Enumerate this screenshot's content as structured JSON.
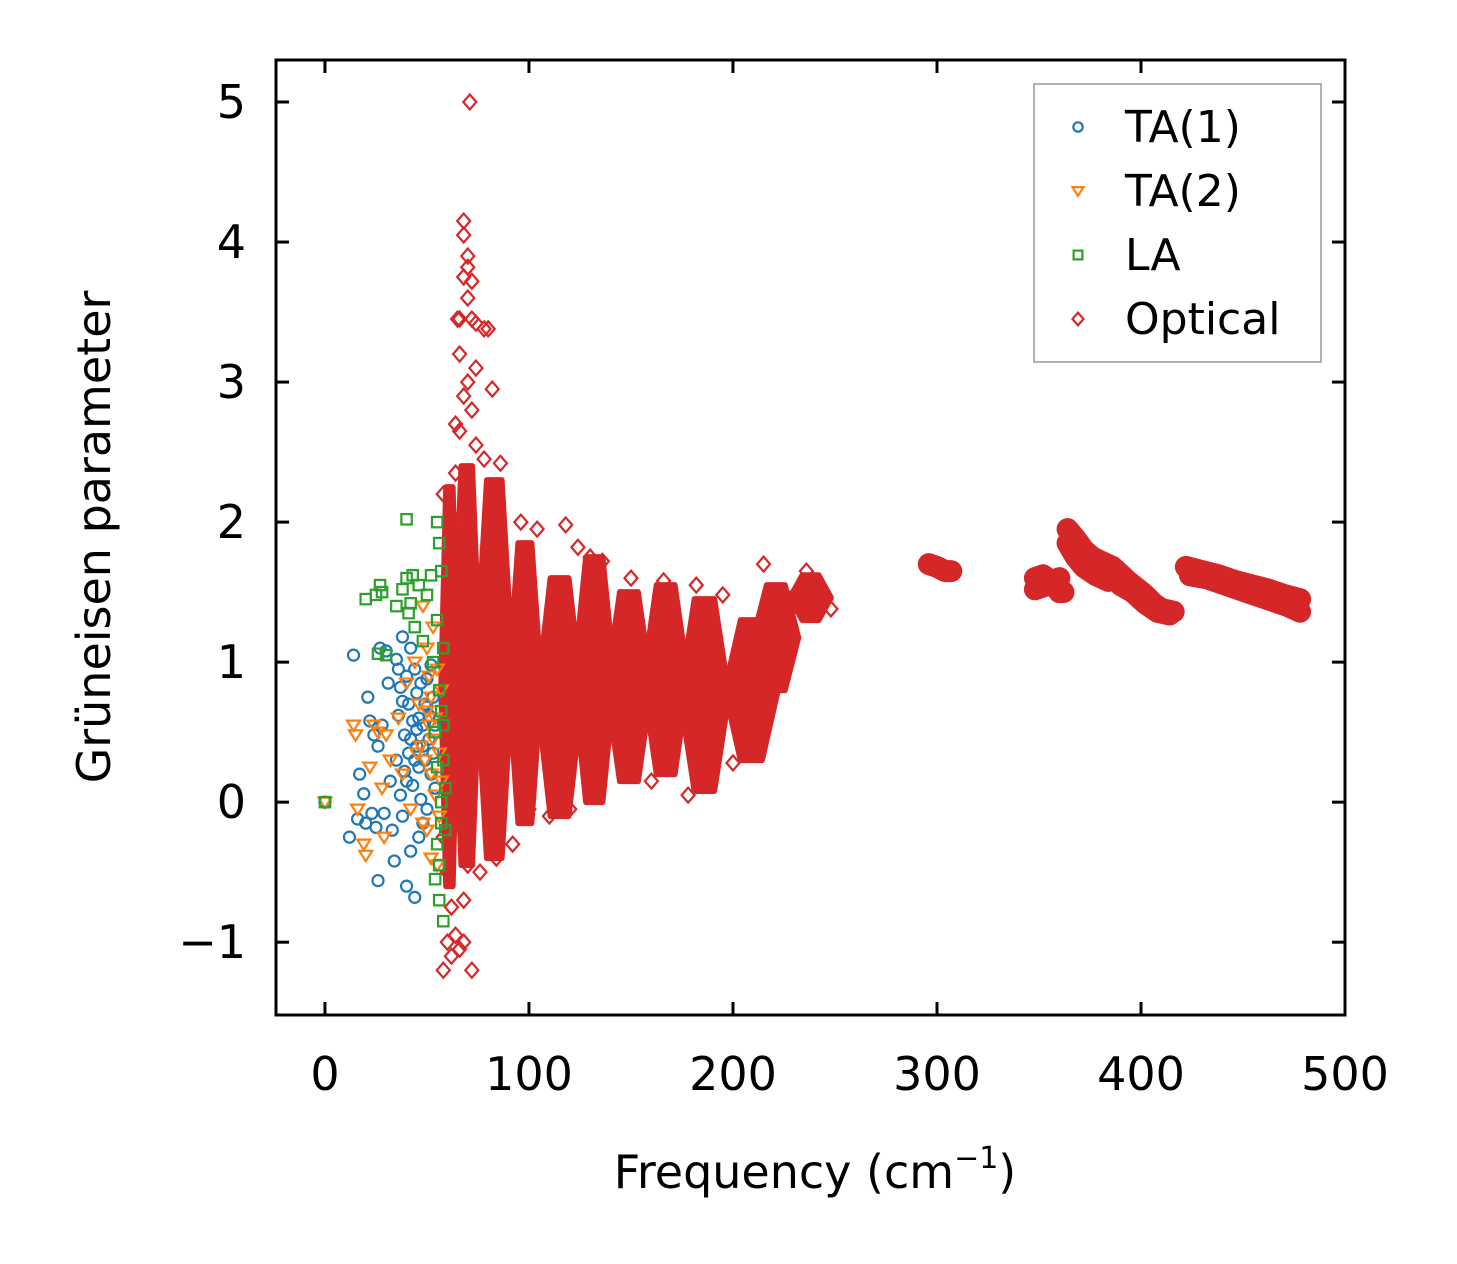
{
  "chart_data": {
    "type": "scatter",
    "title": "",
    "xlabel": "Frequency (cm",
    "xlabel_sup": "−1",
    "xlabel_end": ")",
    "ylabel": "Grüneisen parameter",
    "xlim": [
      -24,
      500
    ],
    "ylim": [
      -1.52,
      5.3
    ],
    "xticks": [
      0,
      100,
      200,
      300,
      400,
      500
    ],
    "xtick_labels": [
      "0",
      "100",
      "200",
      "300",
      "400",
      "500"
    ],
    "yticks": [
      -1,
      0,
      1,
      2,
      3,
      4,
      5
    ],
    "ytick_labels": [
      "−1",
      "0",
      "1",
      "2",
      "3",
      "4",
      "5"
    ],
    "grid": false,
    "legend_position": "top-right",
    "series": [
      {
        "name": "TA(1)",
        "marker": "circle",
        "color": "#1f77b4",
        "points": [
          [
            0,
            0.0
          ],
          [
            12,
            -0.25
          ],
          [
            14,
            1.05
          ],
          [
            16,
            -0.12
          ],
          [
            17,
            0.2
          ],
          [
            19,
            0.06
          ],
          [
            20,
            -0.15
          ],
          [
            21,
            0.75
          ],
          [
            22,
            0.58
          ],
          [
            23,
            -0.08
          ],
          [
            24,
            0.48
          ],
          [
            25,
            -0.18
          ],
          [
            26,
            -0.56
          ],
          [
            26,
            0.4
          ],
          [
            27,
            1.1
          ],
          [
            28,
            0.55
          ],
          [
            29,
            -0.08
          ],
          [
            30,
            1.08
          ],
          [
            31,
            0.85
          ],
          [
            32,
            0.15
          ],
          [
            33,
            -0.2
          ],
          [
            34,
            -0.42
          ],
          [
            35,
            1.02
          ],
          [
            35,
            0.3
          ],
          [
            36,
            0.62
          ],
          [
            37,
            0.05
          ],
          [
            37,
            0.82
          ],
          [
            38,
            1.18
          ],
          [
            38,
            -0.1
          ],
          [
            39,
            0.48
          ],
          [
            39,
            0.22
          ],
          [
            40,
            0.9
          ],
          [
            40,
            -0.6
          ],
          [
            41,
            0.35
          ],
          [
            41,
            0.7
          ],
          [
            42,
            1.1
          ],
          [
            42,
            -0.35
          ],
          [
            43,
            0.58
          ],
          [
            43,
            0.12
          ],
          [
            44,
            0.95
          ],
          [
            44,
            -0.68
          ],
          [
            45,
            0.4
          ],
          [
            45,
            0.78
          ],
          [
            46,
            -0.25
          ],
          [
            46,
            0.25
          ],
          [
            47,
            0.85
          ],
          [
            47,
            0.02
          ],
          [
            48,
            0.55
          ],
          [
            48,
            -0.15
          ],
          [
            49,
            0.7
          ],
          [
            49,
            0.3
          ],
          [
            50,
            0.88
          ],
          [
            50,
            -0.05
          ],
          [
            51,
            0.45
          ],
          [
            51,
            0.62
          ],
          [
            52,
            0.2
          ],
          [
            52,
            0.98
          ],
          [
            53,
            0.35
          ],
          [
            53,
            0.75
          ],
          [
            54,
            0.1
          ],
          [
            54,
            0.55
          ],
          [
            44,
            0.3
          ],
          [
            42,
            0.45
          ],
          [
            46,
            0.6
          ],
          [
            48,
            0.4
          ],
          [
            40,
            0.15
          ],
          [
            38,
            0.72
          ],
          [
            36,
            0.95
          ],
          [
            50,
            0.68
          ],
          [
            45,
            0.52
          ]
        ]
      },
      {
        "name": "TA(2)",
        "marker": "triangle-down",
        "color": "#ff7f0e",
        "points": [
          [
            0,
            0.0
          ],
          [
            14,
            0.55
          ],
          [
            15,
            0.48
          ],
          [
            16,
            -0.05
          ],
          [
            19,
            -0.3
          ],
          [
            20,
            -0.38
          ],
          [
            22,
            0.25
          ],
          [
            24,
            0.55
          ],
          [
            26,
            0.5
          ],
          [
            28,
            0.1
          ],
          [
            29,
            -0.25
          ],
          [
            30,
            0.48
          ],
          [
            32,
            0.3
          ],
          [
            36,
            0.6
          ],
          [
            38,
            0.2
          ],
          [
            40,
            0.85
          ],
          [
            42,
            -0.05
          ],
          [
            44,
            1.0
          ],
          [
            46,
            0.7
          ],
          [
            48,
            1.4
          ],
          [
            49,
            0.3
          ],
          [
            50,
            1.1
          ],
          [
            50,
            -0.2
          ],
          [
            51,
            0.55
          ],
          [
            51,
            0.9
          ],
          [
            52,
            -0.4
          ],
          [
            52,
            0.75
          ],
          [
            53,
            0.45
          ],
          [
            53,
            1.25
          ],
          [
            54,
            0.05
          ],
          [
            54,
            0.6
          ],
          [
            55,
            -0.45
          ],
          [
            55,
            0.95
          ],
          [
            56,
            0.35
          ],
          [
            56,
            -0.1
          ],
          [
            57,
            0.8
          ],
          [
            57,
            0.15
          ],
          [
            48,
            -0.15
          ],
          [
            47,
            0.4
          ],
          [
            45,
            0.35
          ],
          [
            50,
            0.65
          ],
          [
            52,
            0.2
          ]
        ]
      },
      {
        "name": "LA",
        "marker": "square",
        "color": "#2ca02c",
        "points": [
          [
            0,
            0.0
          ],
          [
            20,
            1.45
          ],
          [
            25,
            1.48
          ],
          [
            26,
            1.06
          ],
          [
            27,
            1.55
          ],
          [
            28,
            1.5
          ],
          [
            30,
            1.05
          ],
          [
            35,
            1.4
          ],
          [
            38,
            1.52
          ],
          [
            40,
            1.6
          ],
          [
            40,
            2.02
          ],
          [
            41,
            1.35
          ],
          [
            42,
            1.42
          ],
          [
            43,
            1.62
          ],
          [
            44,
            1.25
          ],
          [
            46,
            1.55
          ],
          [
            48,
            1.15
          ],
          [
            50,
            1.48
          ],
          [
            52,
            1.62
          ],
          [
            53,
            1.0
          ],
          [
            54,
            0.5
          ],
          [
            54,
            -0.55
          ],
          [
            55,
            2.0
          ],
          [
            55,
            1.3
          ],
          [
            55,
            0.25
          ],
          [
            55,
            -0.3
          ],
          [
            56,
            1.85
          ],
          [
            56,
            0.8
          ],
          [
            56,
            -0.7
          ],
          [
            57,
            1.65
          ],
          [
            57,
            0.0
          ],
          [
            57,
            -0.15
          ],
          [
            58,
            0.55
          ],
          [
            58,
            0.3
          ],
          [
            58,
            -0.85
          ],
          [
            59,
            0.1
          ],
          [
            59,
            -0.2
          ],
          [
            56,
            -0.45
          ],
          [
            57,
            0.65
          ],
          [
            58,
            1.1
          ]
        ]
      },
      {
        "name": "Optical",
        "marker": "diamond",
        "color": "#d62728",
        "points": [
          [
            71,
            5.0
          ],
          [
            68,
            4.15
          ],
          [
            68,
            4.05
          ],
          [
            70,
            3.9
          ],
          [
            70,
            3.82
          ],
          [
            68,
            3.75
          ],
          [
            72,
            3.72
          ],
          [
            70,
            3.6
          ],
          [
            65,
            3.45
          ],
          [
            66,
            3.45
          ],
          [
            72,
            3.45
          ],
          [
            74,
            3.42
          ],
          [
            78,
            3.38
          ],
          [
            80,
            3.38
          ],
          [
            66,
            3.2
          ],
          [
            74,
            3.1
          ],
          [
            70,
            3.0
          ],
          [
            82,
            2.95
          ],
          [
            68,
            2.9
          ],
          [
            72,
            2.8
          ],
          [
            64,
            2.7
          ],
          [
            66,
            2.65
          ],
          [
            74,
            2.55
          ],
          [
            78,
            2.45
          ],
          [
            64,
            2.35
          ],
          [
            86,
            2.42
          ],
          [
            58,
            2.2
          ],
          [
            62,
            2.05
          ],
          [
            96,
            2.0
          ],
          [
            104,
            1.95
          ],
          [
            118,
            1.98
          ],
          [
            124,
            1.82
          ],
          [
            130,
            1.75
          ],
          [
            136,
            1.72
          ],
          [
            150,
            1.6
          ],
          [
            166,
            1.58
          ],
          [
            182,
            1.55
          ],
          [
            195,
            1.48
          ],
          [
            215,
            1.7
          ],
          [
            228,
            1.45
          ],
          [
            236,
            1.65
          ],
          [
            248,
            1.38
          ],
          [
            58,
            -0.25
          ],
          [
            60,
            -0.5
          ],
          [
            62,
            -0.75
          ],
          [
            60,
            -1.0
          ],
          [
            62,
            -1.1
          ],
          [
            64,
            -0.95
          ],
          [
            68,
            -1.0
          ],
          [
            66,
            -1.05
          ],
          [
            58,
            -1.2
          ],
          [
            72,
            -1.2
          ],
          [
            68,
            -0.7
          ],
          [
            70,
            -0.45
          ],
          [
            76,
            -0.5
          ],
          [
            84,
            -0.4
          ],
          [
            92,
            -0.3
          ],
          [
            100,
            -0.05
          ],
          [
            110,
            -0.1
          ],
          [
            120,
            -0.05
          ],
          [
            134,
            0.1
          ],
          [
            150,
            0.2
          ],
          [
            160,
            0.15
          ],
          [
            178,
            0.05
          ],
          [
            190,
            0.3
          ],
          [
            200,
            0.28
          ],
          [
            210,
            0.6
          ],
          [
            218,
            0.8
          ]
        ],
        "regions": [
          {
            "x0": 57,
            "x1": 65,
            "y0": -0.6,
            "y1": 2.25
          },
          {
            "x0": 63,
            "x1": 76,
            "y0": -0.45,
            "y1": 2.4
          },
          {
            "x0": 74,
            "x1": 92,
            "y0": -0.4,
            "y1": 2.3
          },
          {
            "x0": 90,
            "x1": 106,
            "y0": -0.15,
            "y1": 1.85
          },
          {
            "x0": 104,
            "x1": 126,
            "y0": -0.1,
            "y1": 1.6
          },
          {
            "x0": 122,
            "x1": 142,
            "y0": 0.0,
            "y1": 1.75
          },
          {
            "x0": 138,
            "x1": 160,
            "y0": 0.15,
            "y1": 1.5
          },
          {
            "x0": 156,
            "x1": 178,
            "y0": 0.2,
            "y1": 1.55
          },
          {
            "x0": 174,
            "x1": 198,
            "y0": 0.08,
            "y1": 1.45
          },
          {
            "x0": 196,
            "x1": 222,
            "y0": 0.3,
            "y1": 1.3
          },
          {
            "x0": 210,
            "x1": 232,
            "y0": 0.8,
            "y1": 1.55
          },
          {
            "x0": 228,
            "x1": 248,
            "y0": 1.3,
            "y1": 1.62
          }
        ],
        "curves": [
          [
            [
              296,
              1.7
            ],
            [
              300,
              1.68
            ],
            [
              304,
              1.65
            ],
            [
              307,
              1.65
            ]
          ],
          [
            [
              348,
              1.6
            ],
            [
              352,
              1.62
            ],
            [
              356,
              1.58
            ],
            [
              360,
              1.5
            ],
            [
              362,
              1.5
            ]
          ],
          [
            [
              348,
              1.52
            ],
            [
              354,
              1.55
            ],
            [
              360,
              1.6
            ]
          ],
          [
            [
              364,
              1.95
            ],
            [
              368,
              1.88
            ],
            [
              372,
              1.8
            ],
            [
              376,
              1.75
            ],
            [
              380,
              1.72
            ],
            [
              386,
              1.68
            ],
            [
              392,
              1.6
            ]
          ],
          [
            [
              364,
              1.85
            ],
            [
              368,
              1.75
            ],
            [
              372,
              1.68
            ],
            [
              378,
              1.62
            ],
            [
              384,
              1.58
            ]
          ],
          [
            [
              390,
              1.62
            ],
            [
              396,
              1.55
            ],
            [
              402,
              1.48
            ],
            [
              406,
              1.42
            ],
            [
              410,
              1.38
            ],
            [
              416,
              1.36
            ]
          ],
          [
            [
              390,
              1.55
            ],
            [
              396,
              1.5
            ],
            [
              402,
              1.42
            ],
            [
              408,
              1.36
            ],
            [
              414,
              1.34
            ]
          ],
          [
            [
              422,
              1.68
            ],
            [
              430,
              1.65
            ],
            [
              438,
              1.62
            ],
            [
              446,
              1.58
            ],
            [
              454,
              1.55
            ],
            [
              462,
              1.52
            ],
            [
              470,
              1.48
            ],
            [
              478,
              1.45
            ]
          ],
          [
            [
              424,
              1.62
            ],
            [
              432,
              1.6
            ],
            [
              440,
              1.56
            ],
            [
              448,
              1.52
            ],
            [
              456,
              1.48
            ],
            [
              464,
              1.44
            ],
            [
              472,
              1.4
            ],
            [
              478,
              1.36
            ]
          ]
        ]
      }
    ]
  }
}
